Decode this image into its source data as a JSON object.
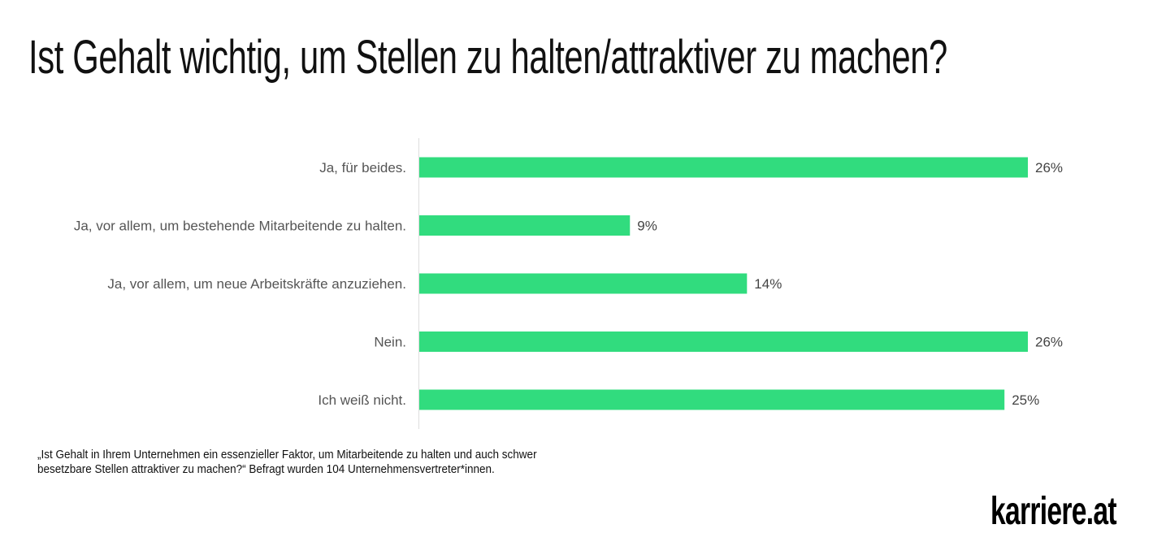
{
  "chart_data": {
    "type": "bar",
    "orientation": "horizontal",
    "title": "Ist Gehalt wichtig, um Stellen zu halten/attraktiver zu machen?",
    "categories": [
      "Ja, für beides.",
      "Ja, vor allem, um bestehende Mitarbeitende zu halten.",
      "Ja, vor allem, um neue Arbeitskräfte anzuziehen.",
      "Nein.",
      "Ich weiß nicht."
    ],
    "values": [
      26,
      9,
      14,
      26,
      25
    ],
    "value_labels": [
      "26%",
      "9%",
      "14%",
      "26%",
      "25%"
    ],
    "unit": "%",
    "xlim": [
      0,
      26
    ],
    "grid": false,
    "legend": "none",
    "bar_color": "#31DC7E"
  },
  "footnote": {
    "line1": "„Ist Gehalt in Ihrem Unternehmen ein essenzieller Faktor, um Mitarbeitende zu halten und auch schwer",
    "line2": "besetzbare Stellen attraktiver zu machen?“ Befragt wurden 104 Unternehmensvertreter*innen."
  },
  "logo": "karriere.at"
}
